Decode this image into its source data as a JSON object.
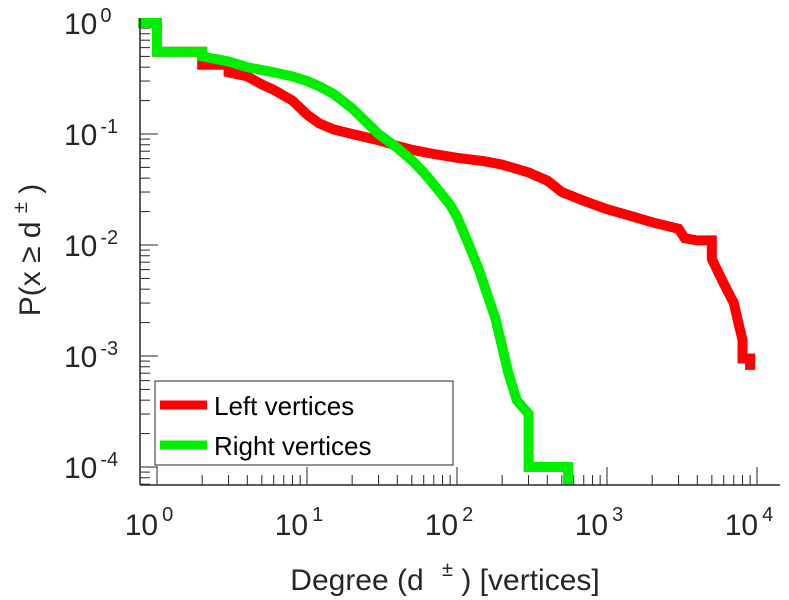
{
  "chart_data": {
    "type": "line",
    "xscale": "log",
    "yscale": "log",
    "xlim": [
      0.75,
      12000
    ],
    "ylim": [
      7e-05,
      1.1
    ],
    "xlabel_parts": [
      "Degree (d",
      "±",
      ") [vertices]"
    ],
    "ylabel_parts": [
      "P(x ≥ d",
      "±",
      ")"
    ],
    "x_ticks": [
      {
        "value": 1,
        "base": "10",
        "exp": "0"
      },
      {
        "value": 10,
        "base": "10",
        "exp": "1"
      },
      {
        "value": 100,
        "base": "10",
        "exp": "2"
      },
      {
        "value": 1000,
        "base": "10",
        "exp": "3"
      },
      {
        "value": 10000,
        "base": "10",
        "exp": "4"
      }
    ],
    "y_ticks": [
      {
        "value": 1,
        "base": "10",
        "exp": "0"
      },
      {
        "value": 0.1,
        "base": "10",
        "exp": "-1"
      },
      {
        "value": 0.01,
        "base": "10",
        "exp": "-2"
      },
      {
        "value": 0.001,
        "base": "10",
        "exp": "-3"
      },
      {
        "value": 0.0001,
        "base": "10",
        "exp": "-4"
      }
    ],
    "grid": false,
    "legend_position": "bottom-left",
    "series": [
      {
        "name": "Left vertices",
        "color": "#ff0000",
        "points": [
          [
            0.75,
            1.0
          ],
          [
            1.0,
            1.0
          ],
          [
            1.0,
            0.55
          ],
          [
            2.0,
            0.55
          ],
          [
            2.0,
            0.42
          ],
          [
            3.0,
            0.42
          ],
          [
            3.0,
            0.36
          ],
          [
            4.0,
            0.33
          ],
          [
            5.0,
            0.28
          ],
          [
            6.0,
            0.25
          ],
          [
            8.0,
            0.2
          ],
          [
            10,
            0.15
          ],
          [
            12,
            0.125
          ],
          [
            15,
            0.11
          ],
          [
            20,
            0.1
          ],
          [
            30,
            0.088
          ],
          [
            40,
            0.078
          ],
          [
            50,
            0.072
          ],
          [
            70,
            0.066
          ],
          [
            100,
            0.061
          ],
          [
            150,
            0.057
          ],
          [
            200,
            0.053
          ],
          [
            300,
            0.045
          ],
          [
            400,
            0.038
          ],
          [
            500,
            0.03
          ],
          [
            700,
            0.025
          ],
          [
            1000,
            0.021
          ],
          [
            1500,
            0.018
          ],
          [
            2000,
            0.016
          ],
          [
            3000,
            0.014
          ],
          [
            3300,
            0.0115
          ],
          [
            4000,
            0.011
          ],
          [
            5000,
            0.011
          ],
          [
            5000,
            0.0075
          ],
          [
            6000,
            0.0045
          ],
          [
            7000,
            0.003
          ],
          [
            7500,
            0.002
          ],
          [
            8000,
            0.0014
          ],
          [
            8000,
            0.00095
          ],
          [
            9000,
            0.00095
          ],
          [
            9000,
            0.00075
          ]
        ]
      },
      {
        "name": "Right vertices",
        "color": "#00ee00",
        "points": [
          [
            0.75,
            1.0
          ],
          [
            1.0,
            1.0
          ],
          [
            1.0,
            0.55
          ],
          [
            2.0,
            0.55
          ],
          [
            2.0,
            0.5
          ],
          [
            3.0,
            0.45
          ],
          [
            4.0,
            0.4
          ],
          [
            6.0,
            0.36
          ],
          [
            8.0,
            0.33
          ],
          [
            10,
            0.3
          ],
          [
            12,
            0.27
          ],
          [
            15,
            0.23
          ],
          [
            20,
            0.17
          ],
          [
            30,
            0.1
          ],
          [
            40,
            0.075
          ],
          [
            50,
            0.058
          ],
          [
            60,
            0.045
          ],
          [
            70,
            0.035
          ],
          [
            80,
            0.028
          ],
          [
            90,
            0.023
          ],
          [
            100,
            0.018
          ],
          [
            120,
            0.01
          ],
          [
            140,
            0.006
          ],
          [
            160,
            0.0035
          ],
          [
            180,
            0.0022
          ],
          [
            200,
            0.0012
          ],
          [
            220,
            0.0007
          ],
          [
            250,
            0.0004
          ],
          [
            300,
            0.0003
          ],
          [
            300,
            0.0001
          ],
          [
            550,
            0.0001
          ],
          [
            550,
            7e-05
          ]
        ]
      }
    ]
  }
}
